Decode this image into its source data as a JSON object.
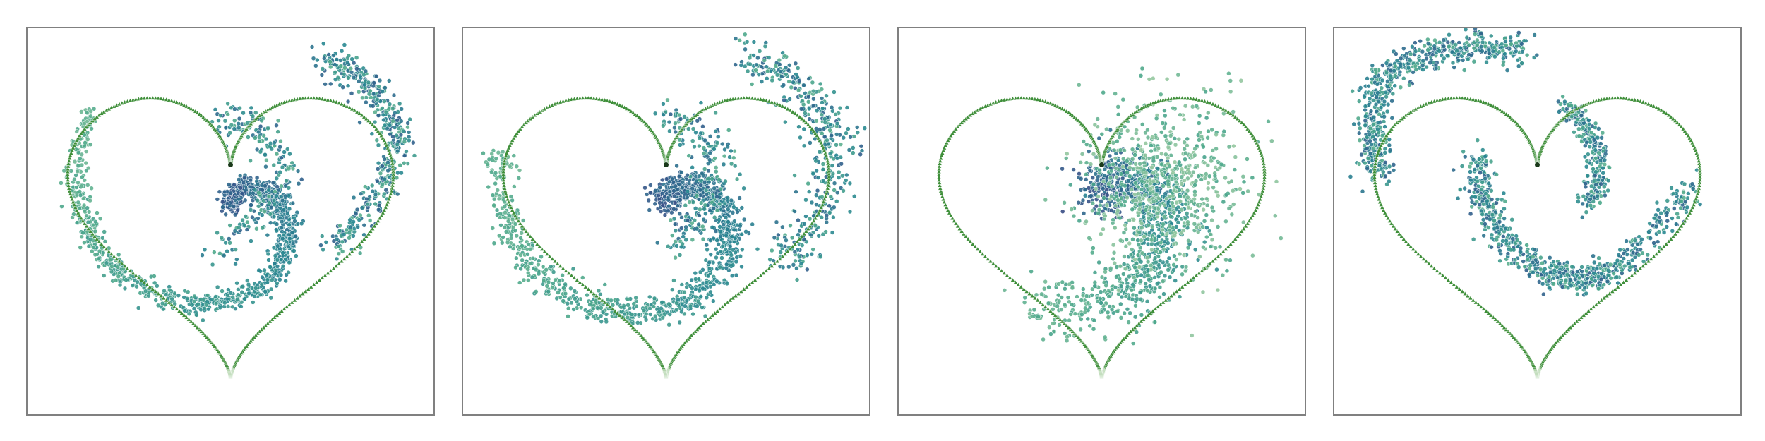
{
  "chart_data": [
    {
      "type": "scatter",
      "title": "",
      "xlabel": "",
      "ylabel": "",
      "xlim": [
        -1.1,
        1.1
      ],
      "ylim": [
        -1.2,
        1.0
      ],
      "grid": false,
      "boundary": {
        "shape": "heart",
        "color": "#3f8f3a",
        "marker": "triangle"
      },
      "colormap": "viridis-cool",
      "series": [
        {
          "kind": "spiral",
          "cx": 0.0,
          "cy": 0.0,
          "a0": 1.57,
          "a1": 6.9,
          "r0": 0.0,
          "r1": 0.98,
          "rot": 0.0,
          "spread": 0.035,
          "n": 1100
        },
        {
          "kind": "arc",
          "points": [
            [
              -0.05,
              -0.3
            ],
            [
              0.15,
              -0.05
            ],
            [
              0.3,
              0.2
            ],
            [
              0.15,
              0.45
            ],
            [
              -0.05,
              0.55
            ]
          ],
          "spread": 0.05,
          "n": 220
        },
        {
          "kind": "arc",
          "points": [
            [
              0.55,
              0.88
            ],
            [
              0.8,
              0.72
            ],
            [
              0.95,
              0.45
            ],
            [
              0.88,
              0.1
            ],
            [
              0.6,
              -0.25
            ]
          ],
          "spread": 0.05,
          "n": 420
        }
      ]
    },
    {
      "type": "scatter",
      "title": "",
      "xlabel": "",
      "ylabel": "",
      "xlim": [
        -1.1,
        1.1
      ],
      "ylim": [
        -1.2,
        1.0
      ],
      "grid": false,
      "boundary": {
        "shape": "heart",
        "color": "#3f8f3a",
        "marker": "triangle"
      },
      "colormap": "viridis-cool",
      "series": [
        {
          "kind": "spiral",
          "cx": 0.0,
          "cy": 0.0,
          "a0": 1.5,
          "a1": 6.6,
          "r0": 0.0,
          "r1": 1.0,
          "rot": 0.0,
          "spread": 0.045,
          "n": 1100
        },
        {
          "kind": "arc",
          "points": [
            [
              0.0,
              0.55
            ],
            [
              0.2,
              0.45
            ],
            [
              0.3,
              0.2
            ],
            [
              0.2,
              -0.05
            ],
            [
              0.05,
              -0.25
            ]
          ],
          "spread": 0.06,
          "n": 220
        },
        {
          "kind": "arc",
          "points": [
            [
              0.5,
              0.9
            ],
            [
              0.8,
              0.7
            ],
            [
              0.95,
              0.4
            ],
            [
              0.9,
              0.0
            ],
            [
              0.7,
              -0.3
            ]
          ],
          "spread": 0.07,
          "n": 420
        }
      ]
    },
    {
      "type": "scatter",
      "title": "",
      "xlabel": "",
      "ylabel": "",
      "xlim": [
        -1.1,
        1.1
      ],
      "ylim": [
        -1.2,
        1.0
      ],
      "grid": false,
      "boundary": {
        "shape": "heart",
        "color": "#3f8f3a",
        "marker": "triangle"
      },
      "colormap": "viridis-cool",
      "series": [
        {
          "kind": "spiral",
          "cx": 0.0,
          "cy": 0.05,
          "a0": 1.6,
          "a1": 5.2,
          "r0": 0.0,
          "r1": 0.75,
          "rot": 0.0,
          "spread": 0.09,
          "n": 900
        },
        {
          "kind": "cloud",
          "cx": 0.35,
          "cy": 0.1,
          "rx": 0.45,
          "ry": 0.55,
          "n": 700
        }
      ]
    },
    {
      "type": "scatter",
      "title": "",
      "xlabel": "",
      "ylabel": "",
      "xlim": [
        -1.1,
        1.1
      ],
      "ylim": [
        -1.2,
        1.0
      ],
      "grid": false,
      "boundary": {
        "shape": "heart",
        "color": "#3f8f3a",
        "marker": "triangle"
      },
      "colormap": "viridis-cool",
      "series": [
        {
          "kind": "arc",
          "points": [
            [
              -0.1,
              0.95
            ],
            [
              -0.45,
              0.95
            ],
            [
              -0.85,
              0.8
            ],
            [
              -0.95,
              0.5
            ],
            [
              -0.92,
              0.2
            ]
          ],
          "spread": 0.05,
          "n": 600
        },
        {
          "kind": "arc",
          "points": [
            [
              -0.35,
              0.3
            ],
            [
              -0.3,
              0.0
            ],
            [
              -0.1,
              -0.3
            ],
            [
              0.2,
              -0.45
            ],
            [
              0.5,
              -0.35
            ],
            [
              0.9,
              0.1
            ]
          ],
          "spread": 0.045,
          "n": 700
        },
        {
          "kind": "arc",
          "points": [
            [
              0.15,
              0.6
            ],
            [
              0.3,
              0.45
            ],
            [
              0.35,
              0.2
            ],
            [
              0.3,
              0.0
            ]
          ],
          "spread": 0.035,
          "n": 250
        }
      ]
    }
  ]
}
